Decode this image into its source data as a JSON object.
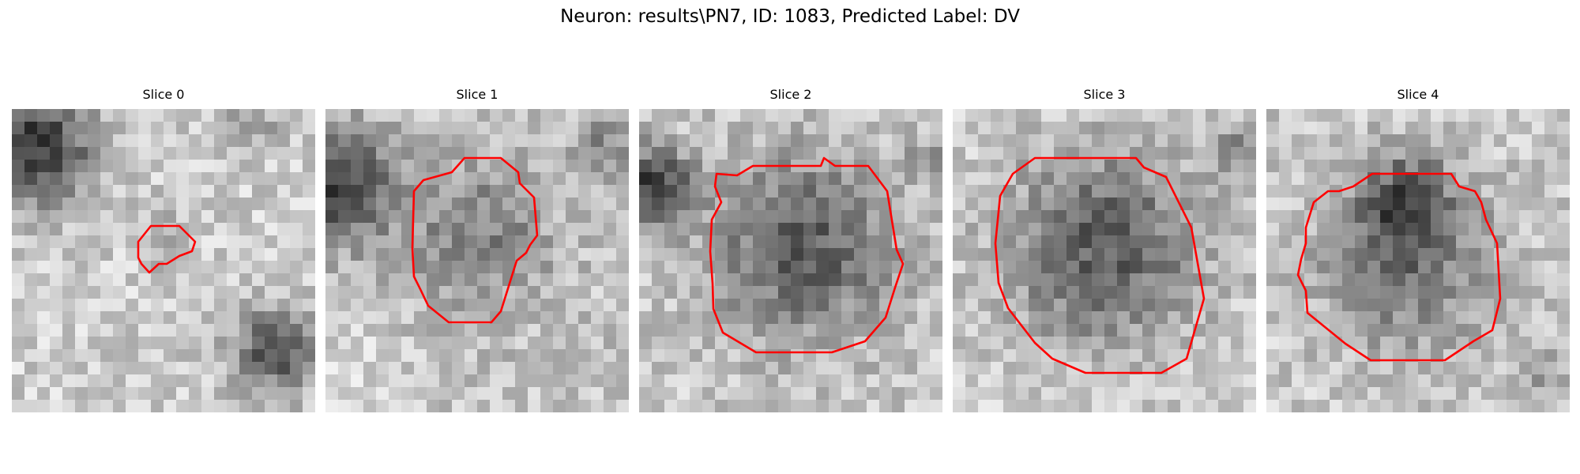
{
  "figure": {
    "title": "Neuron: results\\PN7, ID: 1083, Predicted Label: DV"
  },
  "colors": {
    "contour": "#ff0000",
    "colormap": "gray"
  },
  "slices": [
    {
      "title": "Slice 0"
    },
    {
      "title": "Slice 1"
    },
    {
      "title": "Slice 2"
    },
    {
      "title": "Slice 3"
    },
    {
      "title": "Slice 4"
    }
  ]
}
